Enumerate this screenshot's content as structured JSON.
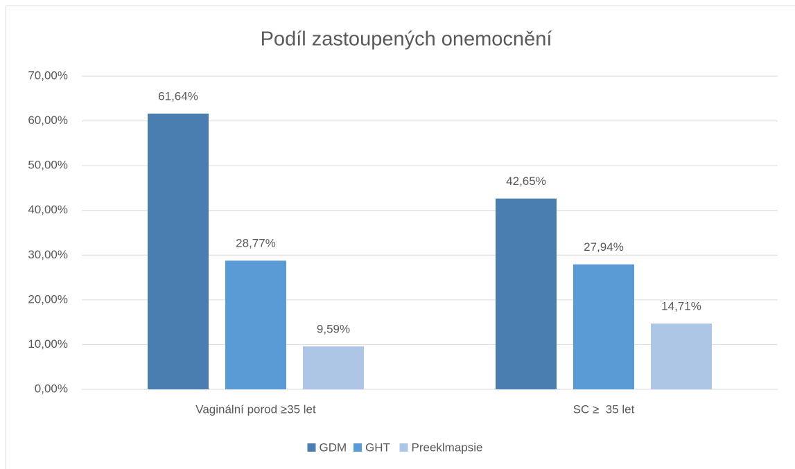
{
  "chart_data": {
    "type": "bar",
    "title": "Podíl zastoupených onemocnění",
    "categories": [
      "Vaginální porod ≥35 let",
      "SC ≥  35 let"
    ],
    "series": [
      {
        "name": "GDM",
        "color": "#4a7eb0",
        "values": [
          61.64,
          42.65
        ],
        "value_labels": [
          "61,64%",
          "42,65%"
        ]
      },
      {
        "name": "GHT",
        "color": "#5b9bd5",
        "values": [
          28.77,
          27.94
        ],
        "value_labels": [
          "28,77%",
          "27,94%"
        ]
      },
      {
        "name": "Preeklmapsie",
        "color": "#adc6e5",
        "values": [
          9.59,
          14.71
        ],
        "value_labels": [
          "9,59%",
          "14,71%"
        ]
      }
    ],
    "ylim": [
      0,
      70
    ],
    "yticks": [
      {
        "value": 0,
        "label": "0,00%"
      },
      {
        "value": 10,
        "label": "10,00%"
      },
      {
        "value": 20,
        "label": "20,00%"
      },
      {
        "value": 30,
        "label": "30,00%"
      },
      {
        "value": 40,
        "label": "40,00%"
      },
      {
        "value": 50,
        "label": "50,00%"
      },
      {
        "value": 60,
        "label": "60,00%"
      },
      {
        "value": 70,
        "label": "70,00%"
      }
    ],
    "grid": true,
    "legend": "bottom"
  }
}
